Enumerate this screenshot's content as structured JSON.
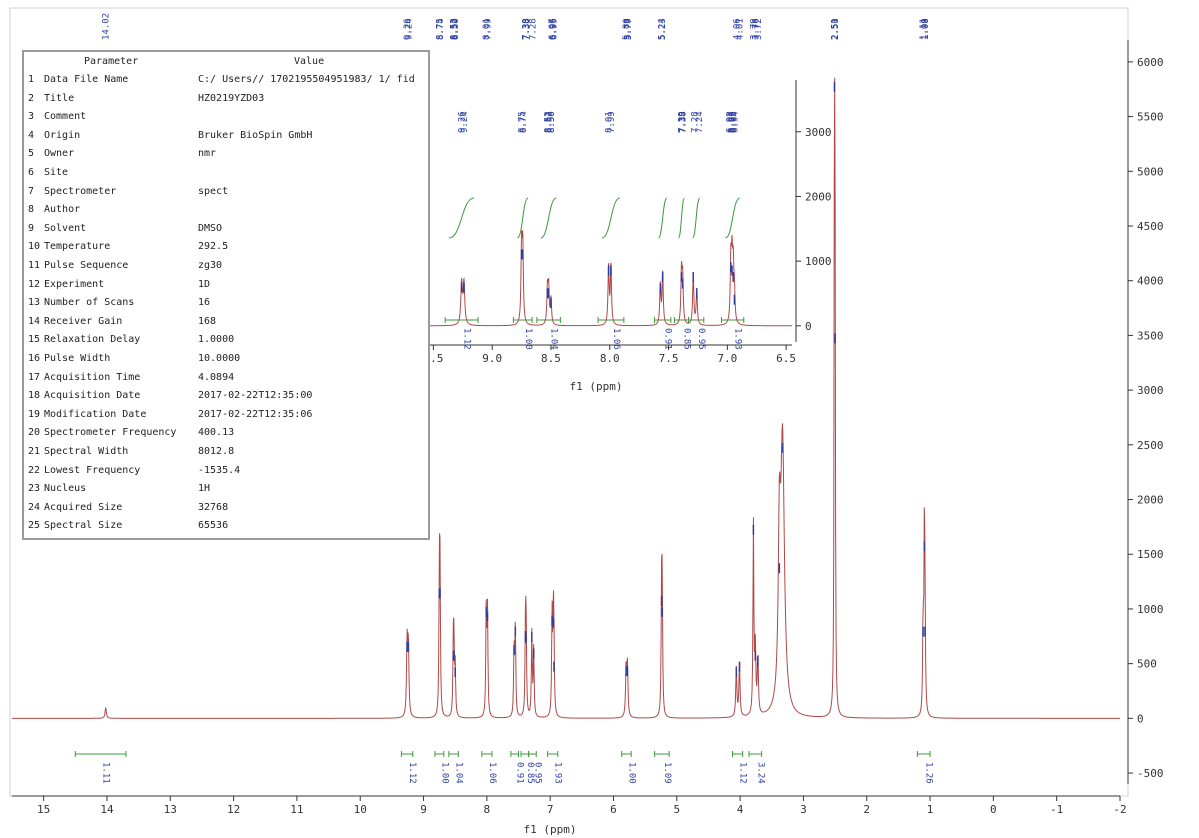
{
  "colors": {
    "spectrum": "#b04848",
    "integral": "#3c9a3c",
    "peak_label": "#2d3ea0",
    "axis": "#333333"
  },
  "parameter_table": {
    "header_parameter": "Parameter",
    "header_value": "Value",
    "rows": [
      {
        "index": "1",
        "name": "Data File Name",
        "value": "C:/ Users// 1702195504951983/ 1/ fid"
      },
      {
        "index": "2",
        "name": "Title",
        "value": "HZ0219YZD03"
      },
      {
        "index": "3",
        "name": "Comment",
        "value": ""
      },
      {
        "index": "4",
        "name": "Origin",
        "value": "Bruker BioSpin GmbH"
      },
      {
        "index": "5",
        "name": "Owner",
        "value": "nmr"
      },
      {
        "index": "6",
        "name": "Site",
        "value": ""
      },
      {
        "index": "7",
        "name": "Spectrometer",
        "value": "spect"
      },
      {
        "index": "8",
        "name": "Author",
        "value": ""
      },
      {
        "index": "9",
        "name": "Solvent",
        "value": "DMSO"
      },
      {
        "index": "10",
        "name": "Temperature",
        "value": "292.5"
      },
      {
        "index": "11",
        "name": "Pulse Sequence",
        "value": "zg30"
      },
      {
        "index": "12",
        "name": "Experiment",
        "value": "1D"
      },
      {
        "index": "13",
        "name": "Number of Scans",
        "value": "16"
      },
      {
        "index": "14",
        "name": "Receiver Gain",
        "value": "168"
      },
      {
        "index": "15",
        "name": "Relaxation Delay",
        "value": "1.0000"
      },
      {
        "index": "16",
        "name": "Pulse Width",
        "value": "10.0000"
      },
      {
        "index": "17",
        "name": "Acquisition Time",
        "value": "4.0894"
      },
      {
        "index": "18",
        "name": "Acquisition Date",
        "value": "2017-02-22T12:35:00"
      },
      {
        "index": "19",
        "name": "Modification Date",
        "value": "2017-02-22T12:35:06"
      },
      {
        "index": "20",
        "name": "Spectrometer Frequency",
        "value": "400.13"
      },
      {
        "index": "21",
        "name": "Spectral Width",
        "value": "8012.8"
      },
      {
        "index": "22",
        "name": "Lowest Frequency",
        "value": "-1535.4"
      },
      {
        "index": "23",
        "name": "Nucleus",
        "value": "1H"
      },
      {
        "index": "24",
        "name": "Acquired Size",
        "value": "32768"
      },
      {
        "index": "25",
        "name": "Spectral Size",
        "value": "65536"
      }
    ]
  },
  "chart_data": [
    {
      "type": "line",
      "xlabel": "f1 (ppm)",
      "xlim": [
        15.5,
        -2
      ],
      "ylim": [
        -600,
        6200
      ],
      "x_ticks": [
        "15",
        "14",
        "13",
        "12",
        "11",
        "10",
        "9",
        "8",
        "7",
        "6",
        "5",
        "4",
        "3",
        "2",
        "1",
        "0",
        "-1",
        "-2"
      ],
      "y_ticks": [
        "-500",
        "0",
        "500",
        "1000",
        "1500",
        "2000",
        "2500",
        "3000",
        "3500",
        "4000",
        "4500",
        "5000",
        "5500",
        "6000"
      ],
      "peaks": [
        {
          "x": 14.02,
          "y": 100,
          "w": 0.012
        },
        {
          "x": 9.26,
          "y": 680,
          "w": 0.01
        },
        {
          "x": 9.24,
          "y": 680,
          "w": 0.01
        },
        {
          "x": 8.75,
          "y": 1170,
          "w": 0.008
        },
        {
          "x": 8.74,
          "y": 1170,
          "w": 0.008
        },
        {
          "x": 8.53,
          "y": 600,
          "w": 0.008
        },
        {
          "x": 8.52,
          "y": 600,
          "w": 0.008
        },
        {
          "x": 8.5,
          "y": 450,
          "w": 0.008
        },
        {
          "x": 8.01,
          "y": 1000,
          "w": 0.008
        },
        {
          "x": 7.99,
          "y": 960,
          "w": 0.008
        },
        {
          "x": 7.57,
          "y": 650,
          "w": 0.008
        },
        {
          "x": 7.55,
          "y": 820,
          "w": 0.008
        },
        {
          "x": 7.39,
          "y": 780,
          "w": 0.008
        },
        {
          "x": 7.38,
          "y": 760,
          "w": 0.008
        },
        {
          "x": 7.29,
          "y": 770,
          "w": 0.008
        },
        {
          "x": 7.26,
          "y": 620,
          "w": 0.008
        },
        {
          "x": 6.97,
          "y": 920,
          "w": 0.008
        },
        {
          "x": 6.95,
          "y": 900,
          "w": 0.008
        },
        {
          "x": 6.94,
          "y": 500,
          "w": 0.008
        },
        {
          "x": 5.8,
          "y": 460,
          "w": 0.01
        },
        {
          "x": 5.78,
          "y": 460,
          "w": 0.01
        },
        {
          "x": 5.24,
          "y": 1100,
          "w": 0.008
        },
        {
          "x": 5.23,
          "y": 1000,
          "w": 0.008
        },
        {
          "x": 4.06,
          "y": 450,
          "w": 0.01
        },
        {
          "x": 4.01,
          "y": 500,
          "w": 0.01
        },
        {
          "x": 3.79,
          "y": 1750,
          "w": 0.008
        },
        {
          "x": 3.76,
          "y": 600,
          "w": 0.01
        },
        {
          "x": 3.72,
          "y": 550,
          "w": 0.01
        },
        {
          "x": 3.38,
          "y": 1400,
          "w": 0.02
        },
        {
          "x": 3.33,
          "y": 2500,
          "w": 0.035
        },
        {
          "x": 2.51,
          "y": 5800,
          "w": 0.006
        },
        {
          "x": 2.5,
          "y": 3500,
          "w": 0.006
        },
        {
          "x": 1.11,
          "y": 820,
          "w": 0.008
        },
        {
          "x": 1.09,
          "y": 1600,
          "w": 0.008
        },
        {
          "x": 1.08,
          "y": 820,
          "w": 0.008
        }
      ],
      "peak_labels": [
        "14.02",
        "9.26",
        "9.24",
        "8.75",
        "8.74",
        "8.53",
        "8.52",
        "8.50",
        "8.01",
        "7.99",
        "7.39",
        "7.38",
        "7.38",
        "7.38",
        "7.28",
        "6.97",
        "6.96",
        "6.95",
        "5.80",
        "5.78",
        "5.77",
        "5.24",
        "5.23",
        "4.06",
        "4.01",
        "3.79",
        "3.76",
        "3.72",
        "2.51",
        "2.51",
        "2.50",
        "1.11",
        "1.09",
        "1.08"
      ],
      "integrals": [
        {
          "from": 14.5,
          "to": 13.7,
          "label": "1.11"
        },
        {
          "from": 9.35,
          "to": 9.17,
          "label": "1.12"
        },
        {
          "from": 8.82,
          "to": 8.68,
          "label": "1.00"
        },
        {
          "from": 8.6,
          "to": 8.45,
          "label": "1.04"
        },
        {
          "from": 8.08,
          "to": 7.92,
          "label": "1.06"
        },
        {
          "from": 7.62,
          "to": 7.5,
          "label": "0.91"
        },
        {
          "from": 7.46,
          "to": 7.34,
          "label": "0.85"
        },
        {
          "from": 7.34,
          "to": 7.22,
          "label": "0.95"
        },
        {
          "from": 7.04,
          "to": 6.88,
          "label": "1.93"
        },
        {
          "from": 5.87,
          "to": 5.72,
          "label": "1.00"
        },
        {
          "from": 5.35,
          "to": 5.12,
          "label": "1.09"
        },
        {
          "from": 4.12,
          "to": 3.96,
          "label": "1.12"
        },
        {
          "from": 3.86,
          "to": 3.66,
          "label": "3.24"
        },
        {
          "from": 1.2,
          "to": 1.0,
          "label": "1.26"
        }
      ]
    },
    {
      "type": "line",
      "xlabel": "f1 (ppm)",
      "xlim": [
        9.75,
        6.45
      ],
      "ylim": [
        -250,
        3800
      ],
      "x_ticks": [
        "9.5",
        "9.0",
        "8.5",
        "8.0",
        "7.5",
        "7.0",
        "6.5"
      ],
      "y_ticks": [
        "0",
        "1000",
        "2000",
        "3000"
      ],
      "peaks": [
        {
          "x": 9.26,
          "y": 640,
          "w": 0.008
        },
        {
          "x": 9.24,
          "y": 640,
          "w": 0.008
        },
        {
          "x": 8.75,
          "y": 1150,
          "w": 0.006
        },
        {
          "x": 8.74,
          "y": 1150,
          "w": 0.006
        },
        {
          "x": 8.53,
          "y": 550,
          "w": 0.006
        },
        {
          "x": 8.52,
          "y": 550,
          "w": 0.006
        },
        {
          "x": 8.5,
          "y": 400,
          "w": 0.006
        },
        {
          "x": 8.01,
          "y": 900,
          "w": 0.006
        },
        {
          "x": 7.99,
          "y": 900,
          "w": 0.006
        },
        {
          "x": 7.57,
          "y": 620,
          "w": 0.006
        },
        {
          "x": 7.55,
          "y": 800,
          "w": 0.006
        },
        {
          "x": 7.39,
          "y": 800,
          "w": 0.006
        },
        {
          "x": 7.38,
          "y": 700,
          "w": 0.006
        },
        {
          "x": 7.29,
          "y": 800,
          "w": 0.006
        },
        {
          "x": 7.26,
          "y": 550,
          "w": 0.006
        },
        {
          "x": 6.97,
          "y": 950,
          "w": 0.006
        },
        {
          "x": 6.96,
          "y": 900,
          "w": 0.006
        },
        {
          "x": 6.95,
          "y": 800,
          "w": 0.006
        },
        {
          "x": 6.94,
          "y": 450,
          "w": 0.006
        }
      ],
      "peak_labels": [
        "9.26",
        "9.24",
        "8.75",
        "8.74",
        "8.53",
        "8.52",
        "8.50",
        "8.50",
        "8.01",
        "7.99",
        "7.39",
        "7.39",
        "7.38",
        "7.38",
        "7.28",
        "7.24",
        "6.98",
        "6.97",
        "6.96",
        "6.95",
        "6.94"
      ],
      "integrals": [
        {
          "from": 9.4,
          "to": 9.12,
          "label": "1.12"
        },
        {
          "from": 8.82,
          "to": 8.66,
          "label": "1.00"
        },
        {
          "from": 8.62,
          "to": 8.42,
          "label": "1.04"
        },
        {
          "from": 8.1,
          "to": 7.88,
          "label": "1.06"
        },
        {
          "from": 7.62,
          "to": 7.48,
          "label": "0.91"
        },
        {
          "from": 7.45,
          "to": 7.33,
          "label": "0.85"
        },
        {
          "from": 7.33,
          "to": 7.2,
          "label": "0.95"
        },
        {
          "from": 7.05,
          "to": 6.86,
          "label": "1.93"
        }
      ]
    }
  ]
}
